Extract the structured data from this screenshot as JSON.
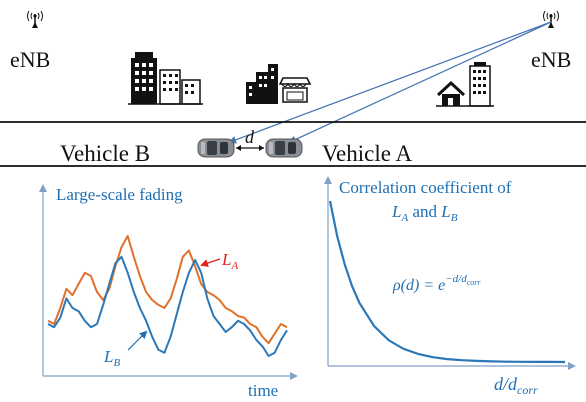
{
  "colors": {
    "axis": "#7fa1c5",
    "blue_series": "#2b78b8",
    "orange_series": "#e0712c",
    "text_blue": "#1f6fb2",
    "label_red": "#e3211c",
    "link_line": "#4a78b5",
    "road": "#111111"
  },
  "icons": [
    "antenna-tower-icon",
    "city-buildings-icon",
    "storefront-icon",
    "house-icon",
    "car-icon"
  ],
  "top": {
    "enb_left": "eNB",
    "enb_right": "eNB",
    "vehicle_b": "Vehicle  B",
    "vehicle_a": "Vehicle  A",
    "distance_label": "d"
  },
  "left_panel": {
    "title": "Large-scale fading",
    "x_label": "time",
    "label_a_main": "L",
    "label_a_sub": "A",
    "label_b_main": "L",
    "label_b_sub": "B"
  },
  "right_panel": {
    "title_line1": "Correlation coefficient of",
    "title_line2_l1": "L",
    "title_line2_s1": "A",
    "title_line2_mid": " and ",
    "title_line2_l2": "L",
    "title_line2_s2": "B",
    "formula_lhs": "ρ(d) = e",
    "formula_exp": "−d/d",
    "formula_exp_sub": "corr",
    "x_label_main": "d/d",
    "x_label_sub": "corr"
  },
  "chart_data": [
    {
      "type": "line",
      "title": "Large-scale fading",
      "xlabel": "time",
      "ylabel": "",
      "series": [
        {
          "name": "L_A",
          "color": "#e0712c",
          "values": [
            0.32,
            0.3,
            0.4,
            0.52,
            0.48,
            0.55,
            0.62,
            0.6,
            0.5,
            0.45,
            0.52,
            0.66,
            0.78,
            0.85,
            0.72,
            0.6,
            0.5,
            0.45,
            0.42,
            0.4,
            0.46,
            0.58,
            0.72,
            0.76,
            0.66,
            0.55,
            0.5,
            0.48,
            0.45,
            0.4,
            0.38,
            0.35,
            0.34,
            0.3,
            0.28,
            0.22,
            0.18,
            0.24,
            0.3,
            0.28
          ]
        },
        {
          "name": "L_B",
          "color": "#2b78b8",
          "values": [
            0.3,
            0.28,
            0.34,
            0.46,
            0.4,
            0.38,
            0.32,
            0.28,
            0.3,
            0.42,
            0.55,
            0.68,
            0.72,
            0.62,
            0.5,
            0.4,
            0.32,
            0.22,
            0.14,
            0.12,
            0.22,
            0.36,
            0.5,
            0.62,
            0.7,
            0.62,
            0.46,
            0.35,
            0.3,
            0.25,
            0.28,
            0.32,
            0.3,
            0.26,
            0.2,
            0.16,
            0.1,
            0.12,
            0.2,
            0.26
          ]
        }
      ]
    },
    {
      "type": "line",
      "title": "Correlation coefficient of L_A and L_B",
      "xlabel": "d/d_corr",
      "ylabel": "",
      "series": [
        {
          "name": "ρ(d)",
          "color": "#2b78b8",
          "x": [
            0,
            0.25,
            0.5,
            0.75,
            1,
            1.5,
            2,
            2.5,
            3,
            3.5,
            4,
            4.5,
            5,
            5.5,
            6,
            6.5,
            7,
            7.5,
            8
          ],
          "values": [
            1,
            0.779,
            0.607,
            0.472,
            0.368,
            0.223,
            0.135,
            0.082,
            0.05,
            0.03,
            0.018,
            0.011,
            0.007,
            0.004,
            0.002,
            0.0015,
            0.0009,
            0.0006,
            0.0003
          ]
        }
      ]
    }
  ]
}
